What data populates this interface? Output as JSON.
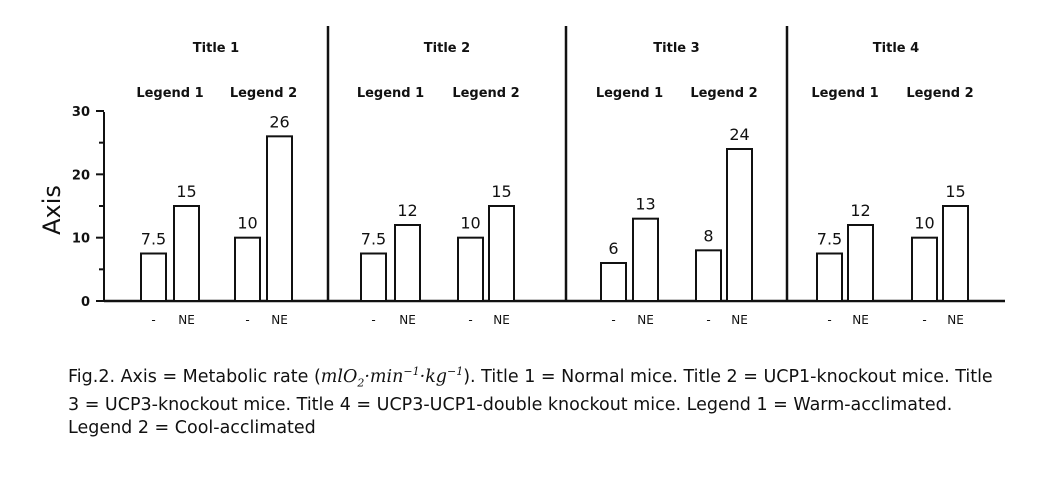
{
  "chart_data": {
    "type": "bar",
    "ylabel": "Axis",
    "ylim": [
      0,
      30
    ],
    "yticks": [
      "0",
      "10",
      "20",
      "30"
    ],
    "panels": [
      {
        "title": "Title 1",
        "groups": [
          {
            "legend": "Legend 1",
            "bars": [
              {
                "x": "-",
                "value": 7.5,
                "label": "7.5"
              },
              {
                "x": "NE",
                "value": 15,
                "label": "15"
              }
            ]
          },
          {
            "legend": "Legend 2",
            "bars": [
              {
                "x": "-",
                "value": 10,
                "label": "10"
              },
              {
                "x": "NE",
                "value": 26,
                "label": "26"
              }
            ]
          }
        ]
      },
      {
        "title": "Title 2",
        "groups": [
          {
            "legend": "Legend 1",
            "bars": [
              {
                "x": "-",
                "value": 7.5,
                "label": "7.5"
              },
              {
                "x": "NE",
                "value": 12,
                "label": "12"
              }
            ]
          },
          {
            "legend": "Legend 2",
            "bars": [
              {
                "x": "-",
                "value": 10,
                "label": "10"
              },
              {
                "x": "NE",
                "value": 15,
                "label": "15"
              }
            ]
          }
        ]
      },
      {
        "title": "Title 3",
        "groups": [
          {
            "legend": "Legend 1",
            "bars": [
              {
                "x": "-",
                "value": 6,
                "label": "6"
              },
              {
                "x": "NE",
                "value": 13,
                "label": "13"
              }
            ]
          },
          {
            "legend": "Legend 2",
            "bars": [
              {
                "x": "-",
                "value": 8,
                "label": "8"
              },
              {
                "x": "NE",
                "value": 24,
                "label": "24"
              }
            ]
          }
        ]
      },
      {
        "title": "Title 4",
        "groups": [
          {
            "legend": "Legend 1",
            "bars": [
              {
                "x": "-",
                "value": 7.5,
                "label": "7.5"
              },
              {
                "x": "NE",
                "value": 12,
                "label": "12"
              }
            ]
          },
          {
            "legend": "Legend 2",
            "bars": [
              {
                "x": "-",
                "value": 10,
                "label": "10"
              },
              {
                "x": "NE",
                "value": 15,
                "label": "15"
              }
            ]
          }
        ]
      }
    ]
  },
  "caption": {
    "part1": "Fig.2. Axis = Metabolic rate (",
    "unit_base": "mlO",
    "unit_o_sub": "2",
    "unit_dot1": "·",
    "unit_min": "min",
    "unit_min_sup": "−1",
    "unit_dot2": "·",
    "unit_kg": "kg",
    "unit_kg_sup": "−1",
    "part2": "). Title 1 = Normal mice. Title 2 = UCP1-knockout mice.  Title 3 = UCP3-knockout mice.  Title 4 = UCP3-UCP1-double knockout mice.  Legend 1 = Warm-acclimated. Legend 2 = Cool-acclimated"
  }
}
